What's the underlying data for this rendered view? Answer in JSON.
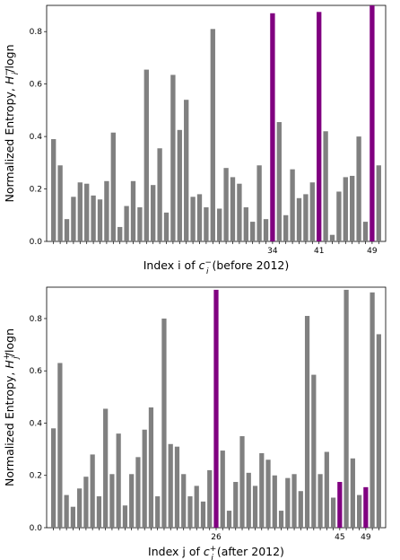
{
  "chart_data": [
    {
      "type": "bar",
      "ylabel": "Normalized Entropy, H_i^-/logn",
      "xlabel": "Index i of c_i^- (before 2012)",
      "ylim": [
        0,
        0.9
      ],
      "yticks": [
        "0.0",
        "0.2",
        "0.4",
        "0.6",
        "0.8"
      ],
      "ytick_values": [
        0,
        0.2,
        0.4,
        0.6,
        0.8
      ],
      "highlight_labels": [
        "34",
        "41",
        "49"
      ],
      "highlight_indices": [
        34,
        41,
        49
      ],
      "colors": {
        "default": "#808080",
        "highlight": "#800080"
      },
      "values": [
        0.39,
        0.29,
        0.085,
        0.17,
        0.225,
        0.22,
        0.175,
        0.16,
        0.23,
        0.415,
        0.055,
        0.135,
        0.23,
        0.13,
        0.655,
        0.215,
        0.355,
        0.11,
        0.635,
        0.425,
        0.54,
        0.17,
        0.18,
        0.13,
        0.81,
        0.125,
        0.28,
        0.245,
        0.22,
        0.13,
        0.075,
        0.29,
        0.085,
        0.87,
        0.455,
        0.1,
        0.275,
        0.165,
        0.18,
        0.225,
        0.875,
        0.42,
        0.025,
        0.19,
        0.245,
        0.25,
        0.4,
        0.075,
        0.9,
        0.29
      ]
    },
    {
      "type": "bar",
      "ylabel": "Normalized Entropy, H_j^+/logn",
      "xlabel": "Index j of c_j^+ (after 2012)",
      "ylim": [
        0,
        0.92
      ],
      "yticks": [
        "0.0",
        "0.2",
        "0.4",
        "0.6",
        "0.8"
      ],
      "ytick_values": [
        0,
        0.2,
        0.4,
        0.6,
        0.8
      ],
      "highlight_labels": [
        "26",
        "45",
        "49"
      ],
      "highlight_indices": [
        26,
        45,
        49
      ],
      "colors": {
        "default": "#808080",
        "highlight": "#800080"
      },
      "values": [
        0.38,
        0.63,
        0.125,
        0.08,
        0.15,
        0.195,
        0.28,
        0.12,
        0.455,
        0.205,
        0.36,
        0.085,
        0.205,
        0.27,
        0.375,
        0.46,
        0.12,
        0.8,
        0.32,
        0.31,
        0.205,
        0.12,
        0.16,
        0.1,
        0.22,
        0.91,
        0.295,
        0.065,
        0.175,
        0.35,
        0.21,
        0.16,
        0.285,
        0.26,
        0.2,
        0.065,
        0.19,
        0.205,
        0.14,
        0.81,
        0.585,
        0.205,
        0.29,
        0.115,
        0.175,
        0.91,
        0.265,
        0.125,
        0.155,
        0.9,
        0.74
      ]
    }
  ]
}
